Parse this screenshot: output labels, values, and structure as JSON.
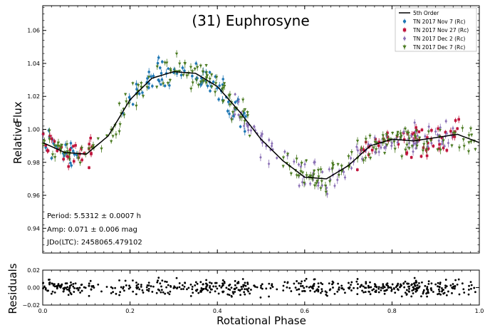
{
  "chart_data": {
    "type": "scatter",
    "title": "(31) Euphrosyne",
    "ylabel_main": [
      "Relative",
      "Flux"
    ],
    "ylabel_residuals": "Residuals",
    "xlabel": "Rotational Phase",
    "xlim": [
      0.0,
      1.0
    ],
    "ylim_main": [
      0.925,
      1.075
    ],
    "ylim_residuals": [
      -0.02,
      0.02
    ],
    "x_ticks": [
      "0.0",
      "0.2",
      "0.4",
      "0.6",
      "0.8",
      "1.0"
    ],
    "y_ticks_main": [
      "0.94",
      "0.96",
      "0.98",
      "1.00",
      "1.02",
      "1.04",
      "1.06"
    ],
    "y_ticks_residuals": [
      "−0.02",
      "0.00",
      "0.02"
    ],
    "legend_position": "top-right",
    "fit": {
      "name": "5th Order",
      "color": "#000000",
      "curve": [
        [
          0.0,
          0.992
        ],
        [
          0.05,
          0.986
        ],
        [
          0.1,
          0.985
        ],
        [
          0.15,
          0.996
        ],
        [
          0.2,
          1.018
        ],
        [
          0.25,
          1.031
        ],
        [
          0.3,
          1.035
        ],
        [
          0.35,
          1.034
        ],
        [
          0.4,
          1.026
        ],
        [
          0.45,
          1.011
        ],
        [
          0.5,
          0.994
        ],
        [
          0.55,
          0.981
        ],
        [
          0.6,
          0.971
        ],
        [
          0.65,
          0.97
        ],
        [
          0.7,
          0.978
        ],
        [
          0.75,
          0.99
        ],
        [
          0.8,
          0.994
        ],
        [
          0.85,
          0.993
        ],
        [
          0.9,
          0.995
        ],
        [
          0.95,
          0.997
        ],
        [
          1.0,
          0.992
        ]
      ]
    },
    "series": [
      {
        "name": "TN 2017 Nov 7  (Rc)",
        "color": "#1f77b4",
        "marker": "circle",
        "segments": [
          [
            0.0,
            0.08
          ],
          [
            0.18,
            0.47
          ]
        ]
      },
      {
        "name": "TN 2017 Nov 27  (Rc)",
        "color": "#c0143c",
        "marker": "square",
        "segments": [
          [
            0.0,
            0.12
          ],
          [
            0.72,
            0.96
          ]
        ]
      },
      {
        "name": "TN 2017 Dec 2  (Rc)",
        "color": "#8a6fb5",
        "marker": "diamond",
        "segments": [
          [
            0.43,
            0.94
          ]
        ]
      },
      {
        "name": "TN 2017 Dec 7  (Rc)",
        "color": "#4a7a20",
        "marker": "triangle-down",
        "segments": [
          [
            0.0,
            0.48
          ],
          [
            0.55,
            1.0
          ]
        ]
      }
    ],
    "annotations": [
      "Period: 5.5312 ± 0.0007 h",
      "Amp: 0.071 ± 0.006 mag",
      "JDo(LTC): 2458065.479102"
    ]
  }
}
